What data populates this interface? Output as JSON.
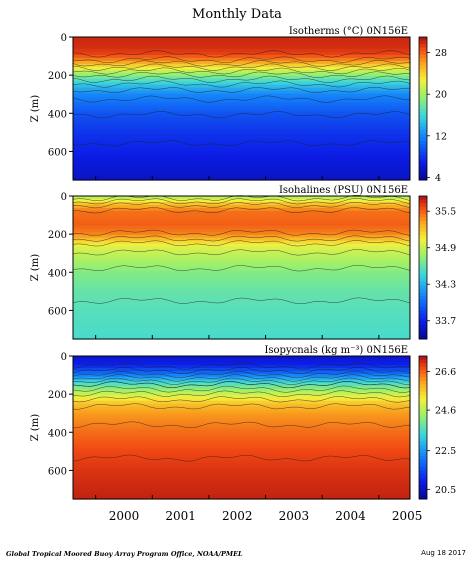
{
  "figure": {
    "title": "Monthly Data",
    "credit": "Global Tropical Moored Buoy Array Program Office, NOAA/PMEL",
    "date": "Aug 18 2017"
  },
  "chart_data": [
    {
      "type": "heatmap",
      "title": "Isotherms (°C) 0N156E",
      "variable": "temperature",
      "unit": "°C",
      "ylabel": "Z (m)",
      "xlim": [
        1999.6,
        2005.55
      ],
      "ylim": [
        750,
        0
      ],
      "x_ticks": [
        2000,
        2001,
        2002,
        2003,
        2004,
        2005
      ],
      "x_tick_labels": [
        "2000",
        "2001",
        "2002",
        "2003",
        "2004",
        "2005"
      ],
      "y_ticks": [
        0,
        200,
        400,
        600
      ],
      "colorbar": {
        "min": 3.5,
        "max": 31,
        "ticks": [
          4,
          12,
          20,
          28
        ]
      },
      "profile": {
        "depth": [
          0,
          50,
          90,
          120,
          150,
          200,
          250,
          300,
          400,
          500,
          600,
          750
        ],
        "value": [
          30,
          29.8,
          29,
          27,
          24,
          19,
          15,
          12,
          9.5,
          8,
          7,
          5.5
        ]
      }
    },
    {
      "type": "heatmap",
      "title": "Isohalines (PSU) 0N156E",
      "variable": "salinity",
      "unit": "PSU",
      "ylabel": "Z (m)",
      "xlim": [
        1999.6,
        2005.55
      ],
      "ylim": [
        750,
        0
      ],
      "x_ticks": [
        2000,
        2001,
        2002,
        2003,
        2004,
        2005
      ],
      "x_tick_labels": [
        "2000",
        "2001",
        "2002",
        "2003",
        "2004",
        "2005"
      ],
      "y_ticks": [
        0,
        200,
        400,
        600
      ],
      "colorbar": {
        "min": 33.4,
        "max": 35.75,
        "ticks": [
          33.7,
          34.3,
          34.9,
          35.5
        ]
      },
      "profile": {
        "depth": [
          0,
          40,
          80,
          150,
          200,
          260,
          300,
          400,
          500,
          600,
          750
        ],
        "value": [
          34.8,
          35.2,
          35.45,
          35.5,
          35.4,
          35.0,
          34.9,
          34.7,
          34.6,
          34.55,
          34.5
        ]
      }
    },
    {
      "type": "heatmap",
      "title": "Isopycnals (kg m⁻³) 0N156E",
      "variable": "density",
      "unit": "kg m⁻³",
      "ylabel": "Z (m)",
      "xlim": [
        1999.6,
        2005.55
      ],
      "ylim": [
        750,
        0
      ],
      "x_ticks": [
        2000,
        2001,
        2002,
        2003,
        2004,
        2005
      ],
      "x_tick_labels": [
        "2000",
        "2001",
        "2002",
        "2003",
        "2004",
        "2005"
      ],
      "y_ticks": [
        0,
        200,
        400,
        600
      ],
      "colorbar": {
        "min": 20,
        "max": 27.4,
        "ticks": [
          20.5,
          22.5,
          24.6,
          26.6
        ]
      },
      "profile": {
        "depth": [
          0,
          50,
          90,
          120,
          150,
          200,
          250,
          300,
          400,
          500,
          600,
          750
        ],
        "value": [
          20.6,
          21.0,
          21.9,
          22.8,
          23.7,
          24.8,
          25.7,
          26.1,
          26.5,
          26.8,
          27.0,
          27.2
        ]
      }
    }
  ]
}
